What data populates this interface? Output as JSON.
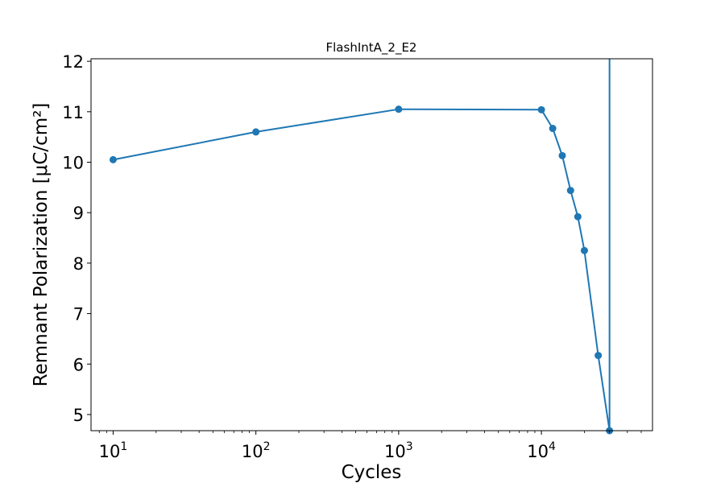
{
  "chart_data": {
    "type": "line",
    "title": "FlashIntA_2_E2",
    "xlabel": "Cycles",
    "ylabel": "Remnant Polarization [μC/cm²]",
    "x_scale": "log",
    "xlim": [
      7,
      60000
    ],
    "ylim": [
      4.68,
      12.05
    ],
    "grid": false,
    "legend": "none",
    "line_color": "#1f77b4",
    "x_ticks": [
      {
        "value": 10,
        "base": "10",
        "exp": "1"
      },
      {
        "value": 100,
        "base": "10",
        "exp": "2"
      },
      {
        "value": 1000,
        "base": "10",
        "exp": "3"
      },
      {
        "value": 10000,
        "base": "10",
        "exp": "4"
      }
    ],
    "y_ticks": [
      {
        "value": 5,
        "label": "5"
      },
      {
        "value": 6,
        "label": "6"
      },
      {
        "value": 7,
        "label": "7"
      },
      {
        "value": 8,
        "label": "8"
      },
      {
        "value": 9,
        "label": "9"
      },
      {
        "value": 10,
        "label": "10"
      },
      {
        "value": 11,
        "label": "11"
      },
      {
        "value": 12,
        "label": "12"
      }
    ],
    "series": [
      {
        "x": [
          10,
          100,
          1000,
          10000,
          12000,
          14000,
          16000,
          18000,
          20000,
          25000,
          30000
        ],
        "y": [
          10.05,
          10.6,
          11.05,
          11.04,
          10.67,
          10.13,
          9.44,
          8.92,
          8.25,
          6.17,
          4.68
        ]
      }
    ],
    "annotations": [
      {
        "type": "vertical-line",
        "x": 30000,
        "from_y": 4.68,
        "to_y": 12.05
      }
    ]
  }
}
